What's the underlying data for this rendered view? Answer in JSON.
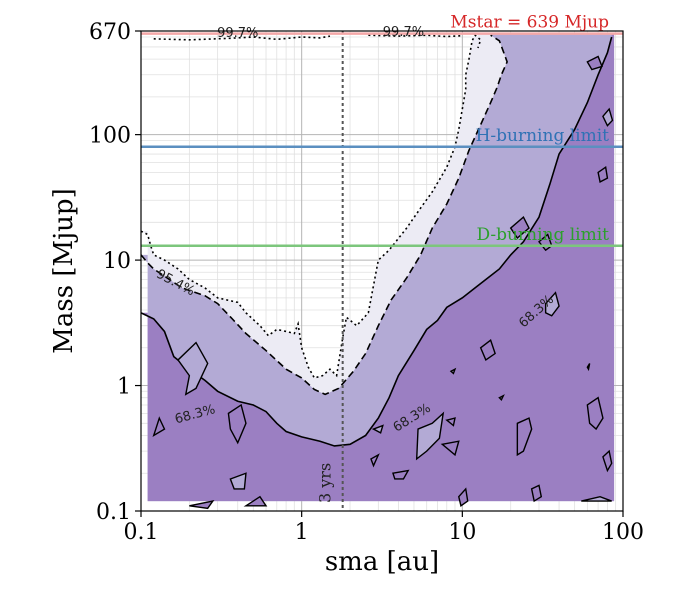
{
  "chart_data": {
    "type": "heatmap",
    "title": "",
    "xlabel": "sma [au]",
    "ylabel": "Mass [Mjup]",
    "xscale": "log",
    "yscale": "log",
    "xlim": [
      0.1,
      100
    ],
    "ylim": [
      0.1,
      670
    ],
    "x_ticks": [
      {
        "value": 0.1,
        "label": "0.1"
      },
      {
        "value": 1,
        "label": "1"
      },
      {
        "value": 10,
        "label": "10"
      },
      {
        "value": 100,
        "label": "100"
      }
    ],
    "y_ticks": [
      {
        "value": 0.1,
        "label": "0.1"
      },
      {
        "value": 1,
        "label": "1"
      },
      {
        "value": 10,
        "label": "10"
      },
      {
        "value": 100,
        "label": "100"
      },
      {
        "value": 670,
        "label": "670"
      }
    ],
    "grid": true,
    "reference_lines": [
      {
        "name": "mstar",
        "value": 639,
        "label": "Mstar = 639 Mjup",
        "color": "#f4a8a8",
        "text_color": "#d62728"
      },
      {
        "name": "h-burning",
        "value": 80,
        "label": "H-burning limit",
        "color": "#5b8fc0",
        "text_color": "#2f72b5"
      },
      {
        "name": "d-burning",
        "value": 13,
        "label": "D-burning limit",
        "color": "#7cc67c",
        "text_color": "#2ca02c"
      }
    ],
    "vertical_line": {
      "value": 1.8,
      "label": "3 yrs",
      "style": "dotted"
    },
    "contours": [
      {
        "level": "99.7%",
        "style": "dotted",
        "fill": "#ecebf4",
        "labels": [
          "99.7%",
          "99.7%"
        ],
        "boundary": [
          [
            0.1,
            17
          ],
          [
            0.11,
            16
          ],
          [
            0.115,
            13
          ],
          [
            0.12,
            11
          ],
          [
            0.14,
            10
          ],
          [
            0.17,
            8.5
          ],
          [
            0.2,
            7
          ],
          [
            0.25,
            6
          ],
          [
            0.3,
            5
          ],
          [
            0.4,
            4.6
          ],
          [
            0.45,
            3.8
          ],
          [
            0.55,
            3
          ],
          [
            0.62,
            2.5
          ],
          [
            0.7,
            2.8
          ],
          [
            0.8,
            2.7
          ],
          [
            0.9,
            2.6
          ],
          [
            0.95,
            3.1
          ],
          [
            1.0,
            2.0
          ],
          [
            1.1,
            1.4
          ],
          [
            1.2,
            1.15
          ],
          [
            1.35,
            1.2
          ],
          [
            1.5,
            1.35
          ],
          [
            1.65,
            1.2
          ],
          [
            1.8,
            2.4
          ],
          [
            1.9,
            3.5
          ],
          [
            2.2,
            3.0
          ],
          [
            2.6,
            3.8
          ],
          [
            3.0,
            10
          ],
          [
            3.5,
            12
          ],
          [
            4.5,
            18
          ],
          [
            5.5,
            26
          ],
          [
            6.5,
            35
          ],
          [
            8,
            55
          ],
          [
            9,
            80
          ],
          [
            9.5,
            110
          ],
          [
            10,
            160
          ],
          [
            10.5,
            230
          ],
          [
            10.5,
            300
          ],
          [
            11,
            400
          ],
          [
            11.5,
            560
          ],
          [
            12,
            620
          ],
          [
            13,
            570
          ],
          [
            12.5,
            490
          ]
        ]
      },
      {
        "level": "95.4%",
        "style": "dashed",
        "fill": "#b3aad5",
        "labels": [
          "95.4%"
        ],
        "boundary": [
          [
            0.1,
            11
          ],
          [
            0.11,
            9.5
          ],
          [
            0.12,
            8.5
          ],
          [
            0.18,
            6
          ],
          [
            0.25,
            5.2
          ],
          [
            0.3,
            4.5
          ],
          [
            0.37,
            3.4
          ],
          [
            0.45,
            2.6
          ],
          [
            0.6,
            1.9
          ],
          [
            0.8,
            1.35
          ],
          [
            1.0,
            1.15
          ],
          [
            1.2,
            0.93
          ],
          [
            1.4,
            0.85
          ],
          [
            1.7,
            0.95
          ],
          [
            2.1,
            1.3
          ],
          [
            2.5,
            1.8
          ],
          [
            3.0,
            3.0
          ],
          [
            3.6,
            4.8
          ],
          [
            4.5,
            7.2
          ],
          [
            5.5,
            11
          ],
          [
            6.5,
            18
          ],
          [
            8,
            28
          ],
          [
            9.5,
            45
          ],
          [
            11,
            75
          ],
          [
            13,
            120
          ],
          [
            15,
            180
          ],
          [
            16.5,
            240
          ],
          [
            17.5,
            300
          ],
          [
            19,
            380
          ],
          [
            18,
            460
          ],
          [
            17,
            560
          ],
          [
            15,
            620
          ]
        ]
      },
      {
        "level": "68.3%",
        "style": "solid",
        "fill": "#9b7fc2",
        "labels": [
          "68.3%",
          "68.3%",
          "68.3%"
        ],
        "boundary": [
          [
            0.1,
            3.8
          ],
          [
            0.12,
            3.4
          ],
          [
            0.14,
            2.7
          ],
          [
            0.16,
            1.7
          ],
          [
            0.2,
            1.35
          ],
          [
            0.25,
            1.1
          ],
          [
            0.3,
            0.9
          ],
          [
            0.4,
            0.75
          ],
          [
            0.5,
            0.7
          ],
          [
            0.6,
            0.62
          ],
          [
            0.7,
            0.5
          ],
          [
            0.8,
            0.43
          ],
          [
            1.0,
            0.39
          ],
          [
            1.3,
            0.36
          ],
          [
            1.6,
            0.33
          ],
          [
            2.0,
            0.34
          ],
          [
            2.5,
            0.4
          ],
          [
            3.0,
            0.55
          ],
          [
            3.5,
            0.8
          ],
          [
            4,
            1.2
          ],
          [
            5,
            1.9
          ],
          [
            6,
            2.8
          ],
          [
            7,
            3.3
          ],
          [
            8,
            4.2
          ],
          [
            10,
            5
          ],
          [
            12,
            6
          ],
          [
            14,
            7
          ],
          [
            17,
            8.5
          ],
          [
            20,
            11
          ],
          [
            24,
            14
          ],
          [
            30,
            22
          ],
          [
            35,
            40
          ],
          [
            40,
            70
          ],
          [
            50,
            110
          ],
          [
            60,
            180
          ],
          [
            70,
            300
          ],
          [
            80,
            450
          ],
          [
            85,
            600
          ]
        ]
      }
    ],
    "contour_levels": [
      "68.3%",
      "95.4%",
      "99.7%"
    ]
  }
}
